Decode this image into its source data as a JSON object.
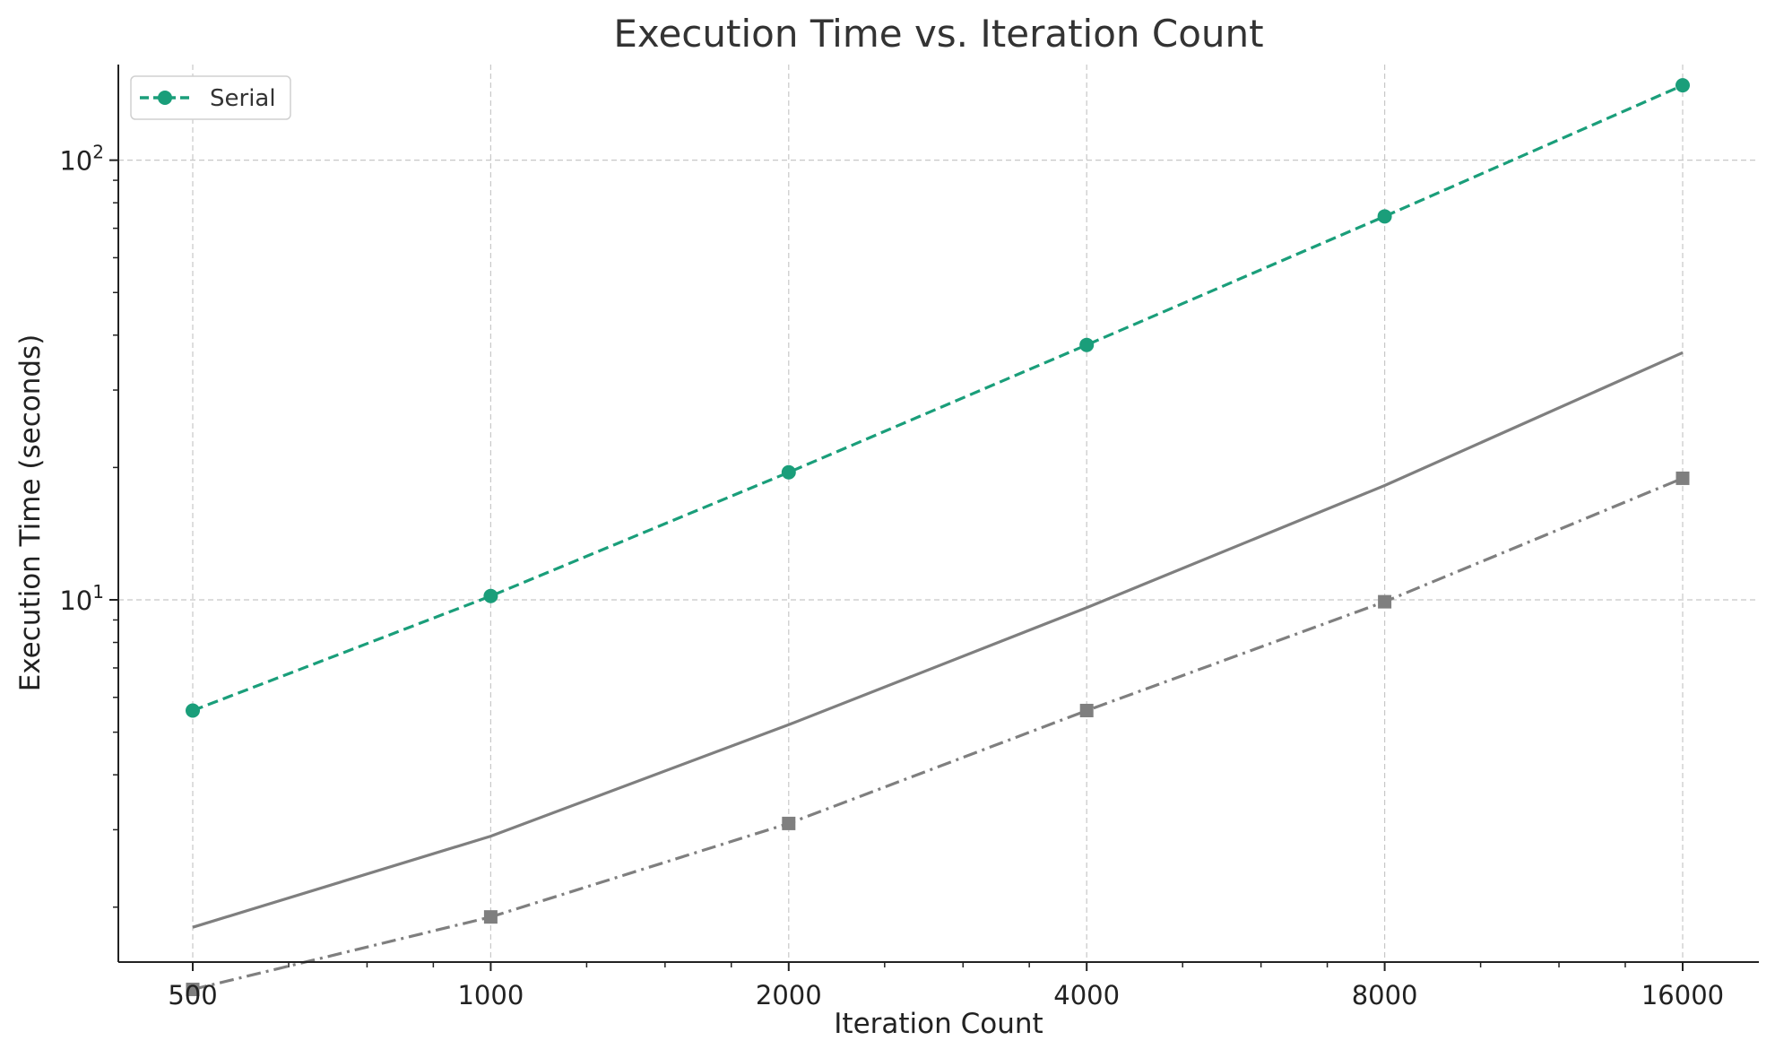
{
  "chart_data": {
    "type": "line",
    "title": "Execution Time vs. Iteration Count",
    "xlabel": "Iteration Count",
    "ylabel": "Execution Time (seconds)",
    "x": [
      500,
      1000,
      2000,
      4000,
      8000,
      16000
    ],
    "x_tick_labels": [
      "500",
      "1000",
      "2000",
      "4000",
      "8000",
      "16000"
    ],
    "x_scale": "log2",
    "y_scale": "log10",
    "ylim": [
      1.5,
      165
    ],
    "grid": true,
    "legend_position": "top-left",
    "series": [
      {
        "name": "Serial",
        "values": [
          5.6,
          10.2,
          19.5,
          38.0,
          74.5,
          148.0
        ],
        "color": "#1a9e7a",
        "line_style": "dashed",
        "marker": "circle"
      },
      {
        "values": [
          1.8,
          2.9,
          5.2,
          9.6,
          18.2,
          36.5
        ],
        "color": "#7f7f7f",
        "line_style": "solid",
        "marker": "none"
      },
      {
        "values": [
          1.3,
          1.9,
          3.1,
          5.6,
          9.9,
          18.9
        ],
        "color": "#7f7f7f",
        "line_style": "dashdot",
        "marker": "square"
      }
    ]
  }
}
